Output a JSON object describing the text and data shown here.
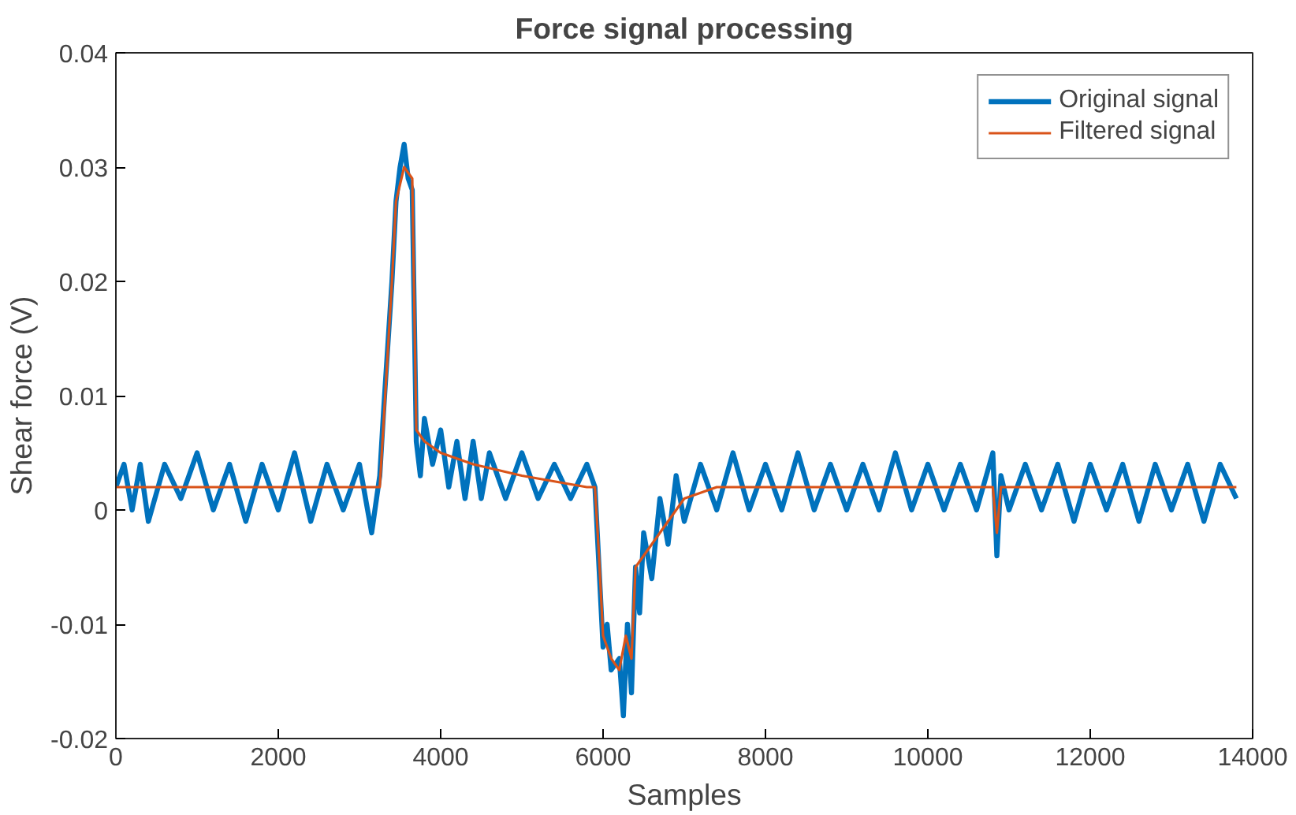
{
  "chart_data": {
    "type": "line",
    "title": "Force signal processing",
    "xlabel": "Samples",
    "ylabel": "Shear force (V)",
    "xlim": [
      0,
      14000
    ],
    "ylim": [
      -0.02,
      0.04
    ],
    "xticks": [
      0,
      2000,
      4000,
      6000,
      8000,
      10000,
      12000,
      14000
    ],
    "yticks": [
      -0.02,
      -0.01,
      0,
      0.01,
      0.02,
      0.03,
      0.04
    ],
    "grid": false,
    "legend": "top right",
    "line_style": "solid",
    "series": [
      {
        "name": "Original signal",
        "color": "#0072bd",
        "x": [
          0,
          100,
          200,
          300,
          400,
          600,
          800,
          1000,
          1200,
          1400,
          1600,
          1800,
          2000,
          2200,
          2400,
          2600,
          2800,
          3000,
          3150,
          3250,
          3300,
          3400,
          3450,
          3500,
          3550,
          3600,
          3650,
          3700,
          3750,
          3800,
          3900,
          4000,
          4100,
          4200,
          4300,
          4400,
          4500,
          4600,
          4800,
          5000,
          5200,
          5400,
          5600,
          5800,
          5900,
          5950,
          6000,
          6050,
          6100,
          6200,
          6250,
          6300,
          6350,
          6400,
          6450,
          6500,
          6600,
          6700,
          6800,
          6900,
          7000,
          7200,
          7400,
          7600,
          7800,
          8000,
          8200,
          8400,
          8600,
          8800,
          9000,
          9200,
          9400,
          9600,
          9800,
          10000,
          10200,
          10400,
          10600,
          10800,
          10850,
          10900,
          11000,
          11200,
          11400,
          11600,
          11800,
          12000,
          12200,
          12400,
          12600,
          12800,
          13000,
          13200,
          13400,
          13600,
          13800
        ],
        "values": [
          0.002,
          0.004,
          0.0,
          0.004,
          -0.001,
          0.004,
          0.001,
          0.005,
          0.0,
          0.004,
          -0.001,
          0.004,
          0.0,
          0.005,
          -0.001,
          0.004,
          0.0,
          0.004,
          -0.002,
          0.003,
          0.009,
          0.02,
          0.027,
          0.03,
          0.032,
          0.029,
          0.028,
          0.006,
          0.003,
          0.008,
          0.004,
          0.007,
          0.002,
          0.006,
          0.001,
          0.006,
          0.001,
          0.005,
          0.001,
          0.005,
          0.001,
          0.004,
          0.001,
          0.004,
          0.002,
          -0.005,
          -0.012,
          -0.01,
          -0.014,
          -0.013,
          -0.018,
          -0.01,
          -0.016,
          -0.005,
          -0.009,
          -0.002,
          -0.006,
          0.001,
          -0.003,
          0.003,
          -0.001,
          0.004,
          0.0,
          0.005,
          0.0,
          0.004,
          0.0,
          0.005,
          0.0,
          0.004,
          0.0,
          0.004,
          0.0,
          0.005,
          0.0,
          0.004,
          0.0,
          0.004,
          0.0,
          0.005,
          -0.004,
          0.003,
          0.0,
          0.004,
          0.0,
          0.004,
          -0.001,
          0.004,
          0.0,
          0.004,
          -0.001,
          0.004,
          0.0,
          0.004,
          -0.001,
          0.004,
          0.001
        ]
      },
      {
        "name": "Filtered signal",
        "color": "#d95319",
        "x": [
          0,
          1000,
          2000,
          3000,
          3250,
          3300,
          3400,
          3450,
          3550,
          3650,
          3700,
          3800,
          4000,
          4400,
          5000,
          5800,
          5900,
          5950,
          6000,
          6100,
          6200,
          6280,
          6350,
          6400,
          6600,
          6800,
          7000,
          7400,
          8000,
          9000,
          10000,
          10800,
          10850,
          10900,
          12000,
          13000,
          13800
        ],
        "values": [
          0.002,
          0.002,
          0.002,
          0.002,
          0.002,
          0.008,
          0.02,
          0.027,
          0.03,
          0.029,
          0.007,
          0.006,
          0.005,
          0.004,
          0.003,
          0.002,
          0.002,
          -0.004,
          -0.011,
          -0.013,
          -0.014,
          -0.011,
          -0.013,
          -0.005,
          -0.003,
          -0.001,
          0.001,
          0.002,
          0.002,
          0.002,
          0.002,
          0.002,
          -0.002,
          0.002,
          0.002,
          0.002,
          0.002
        ]
      }
    ]
  }
}
